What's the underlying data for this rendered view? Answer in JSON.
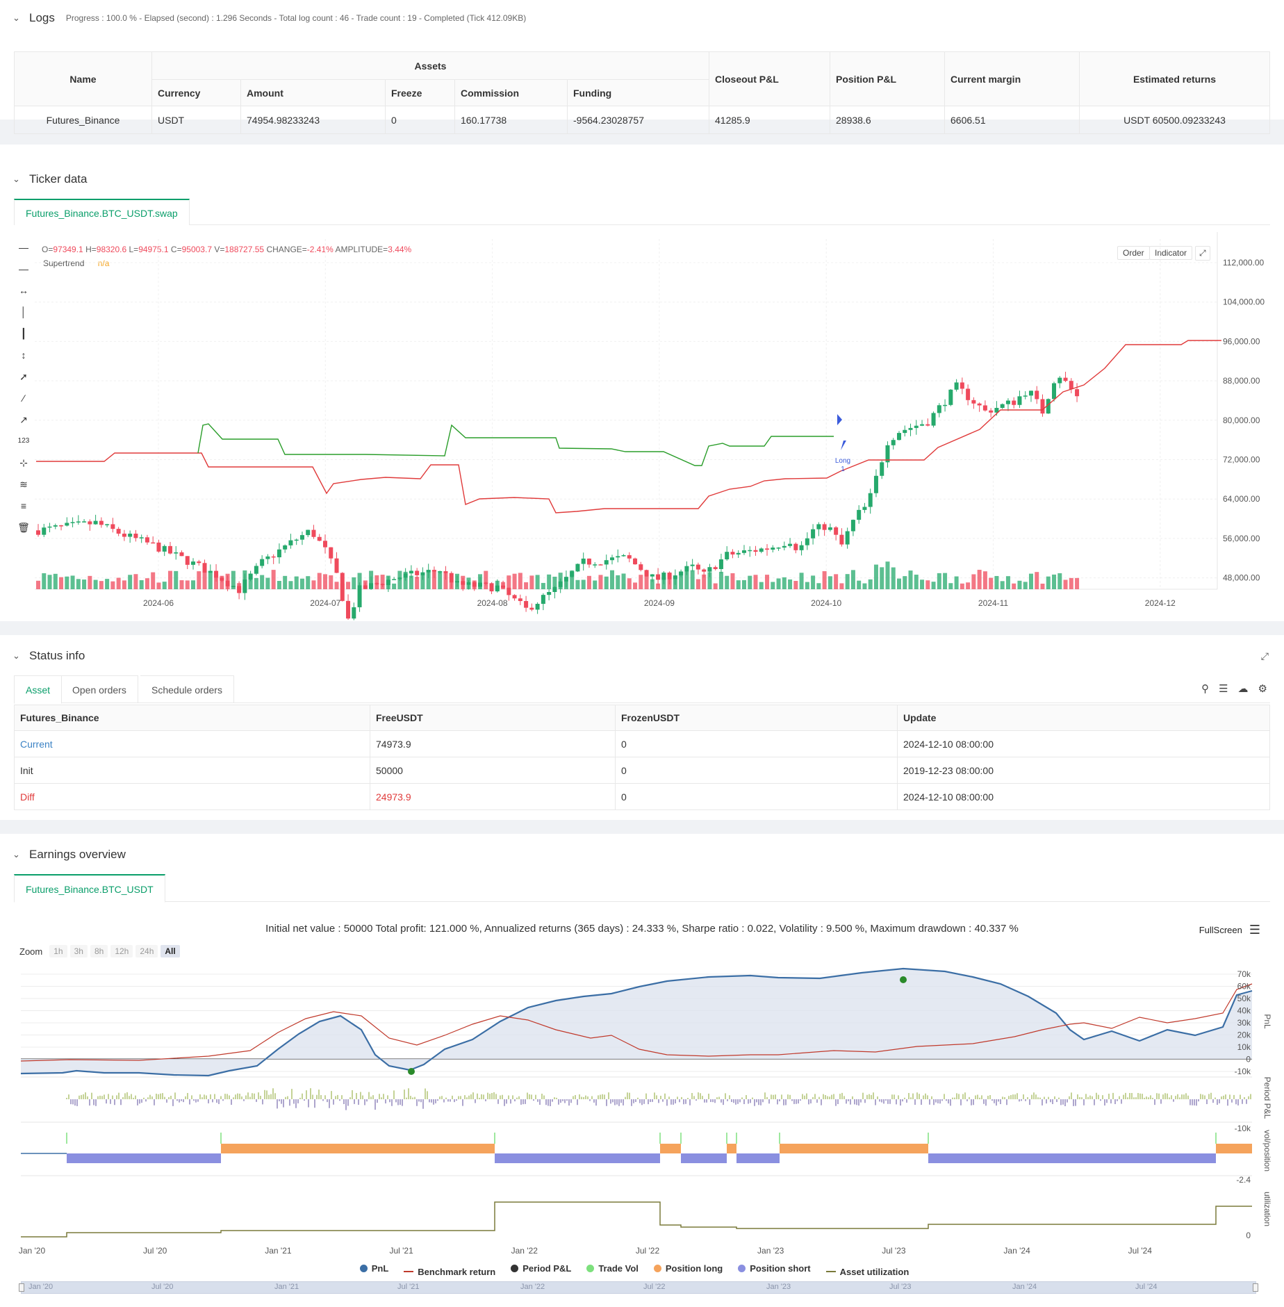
{
  "logs": {
    "title": "Logs",
    "meta": "Progress : 100.0 % - Elapsed (second) : 1.296  Seconds - Total log count : 46 - Trade count : 19 - Completed (Tick 412.09KB)"
  },
  "assets_table": {
    "name_header": "Name",
    "assets_header": "Assets",
    "sub_headers": [
      "Currency",
      "Amount",
      "Freeze",
      "Commission",
      "Funding"
    ],
    "right_headers": [
      "Closeout P&L",
      "Position P&L",
      "Current margin",
      "Estimated returns"
    ],
    "row": [
      "Futures_Binance",
      "USDT",
      "74954.98233243",
      "0",
      "160.17738",
      "-9564.23028757",
      "41285.9",
      "28938.6",
      "6606.51",
      "USDT 60500.09233243"
    ]
  },
  "ticker": {
    "title": "Ticker data",
    "tab": "Futures_Binance.BTC_USDT.swap",
    "ohlc": {
      "o_label": "O=",
      "o": "97349.1",
      "h_label": "H=",
      "h": "98320.6",
      "l_label": "L=",
      "l": "94975.1",
      "c_label": "C=",
      "c": "95003.7",
      "v_label": "V=",
      "v": "188727.55",
      "change_label": "CHANGE=",
      "change": "-2.41%",
      "amp_label": "AMPLITUDE=",
      "amp": "3.44%"
    },
    "indicator_name": "Supertrend",
    "indicator_value": "n/a",
    "order_btn": "Order",
    "indicator_btn": "Indicator",
    "y_ticks": [
      "112,000.00",
      "104,000.00",
      "96,000.00",
      "88,000.00",
      "80,000.00",
      "72,000.00",
      "64,000.00",
      "56,000.00",
      "48,000.00"
    ],
    "x_ticks": [
      "2024-06",
      "2024-07",
      "2024-08",
      "2024-09",
      "2024-10",
      "2024-11",
      "2024-12"
    ],
    "signal_label": "Long",
    "signal_qty": "1",
    "colors": {
      "up": "#26a96c",
      "down": "#ef4a5c",
      "st_up": "#e03a3a",
      "st_down": "#2a9d2a"
    }
  },
  "status": {
    "title": "Status info",
    "tabs": [
      "Asset",
      "Open orders",
      "Schedule orders"
    ],
    "headers": [
      "Futures_Binance",
      "FreeUSDT",
      "FrozenUSDT",
      "Update"
    ],
    "rows": [
      [
        "Current",
        "74973.9",
        "0",
        "2024-12-10 08:00:00"
      ],
      [
        "Init",
        "50000",
        "0",
        "2019-12-23 08:00:00"
      ],
      [
        "Diff",
        "24973.9",
        "0",
        "2024-12-10 08:00:00"
      ]
    ]
  },
  "earnings": {
    "title": "Earnings overview",
    "tab": "Futures_Binance.BTC_USDT",
    "summary": "Initial net value : 50000 Total profit: 121.000 %, Annualized returns (365 days) : 24.333 %, Sharpe ratio : 0.022, Volatility : 9.500 %, Maximum drawdown : 40.337 %",
    "fullscreen": "FullScreen",
    "zoom_label": "Zoom",
    "zoom_options": [
      "1h",
      "3h",
      "8h",
      "12h",
      "24h",
      "All"
    ],
    "pnl_ticks": [
      "70k",
      "60k",
      "50k",
      "40k",
      "30k",
      "20k",
      "10k",
      "0",
      "-10k"
    ],
    "period_tick": "-10k",
    "pos_tick": "-2.4",
    "util_tick": "0",
    "axis_titles": [
      "PnL",
      "Period P&L",
      "vol/position",
      "utilization"
    ],
    "x_ticks": [
      "Jan '20",
      "Jul '20",
      "Jan '21",
      "Jul '21",
      "Jan '22",
      "Jul '22",
      "Jan '23",
      "Jul '23",
      "Jan '24",
      "Jul '24"
    ],
    "legend": [
      {
        "name": "PnL",
        "color": "#3b6ea5"
      },
      {
        "name": "Benchmark return",
        "color": "#c0392b"
      },
      {
        "name": "Period P&L",
        "color": "#333333"
      },
      {
        "name": "Trade Vol",
        "color": "#7de07d"
      },
      {
        "name": "Position long",
        "color": "#f5a35c"
      },
      {
        "name": "Position short",
        "color": "#8a8fe0"
      },
      {
        "name": "Asset utilization",
        "color": "#7a7a3a"
      }
    ]
  }
}
